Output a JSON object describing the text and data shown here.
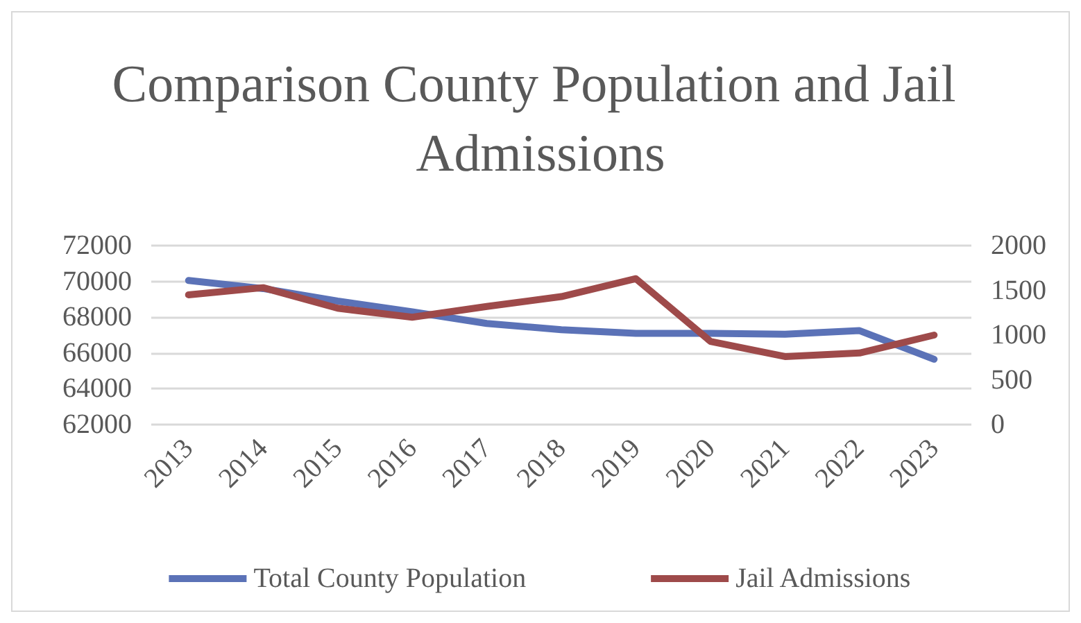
{
  "chart_data": {
    "type": "line",
    "title": "Comparison County Population and Jail Admissions",
    "categories": [
      "2013",
      "2014",
      "2015",
      "2016",
      "2017",
      "2018",
      "2019",
      "2020",
      "2021",
      "2022",
      "2023"
    ],
    "series": [
      {
        "name": "Total County Population",
        "color": "#5b72b7",
        "values": [
          70050,
          69600,
          68900,
          68300,
          67650,
          67300,
          67100,
          67100,
          67050,
          67250,
          65650
        ]
      },
      {
        "name": "Jail Admissions",
        "color": "#9e4a4a",
        "axis": "y2",
        "values": [
          1450,
          1530,
          1300,
          1200,
          1320,
          1430,
          1630,
          930,
          760,
          800,
          1000
        ]
      }
    ],
    "ylim": [
      62000,
      72000
    ],
    "yticks": [
      62000,
      64000,
      66000,
      68000,
      70000,
      72000
    ],
    "y2lim": [
      0,
      2000
    ],
    "y2ticks": [
      0,
      500,
      1000,
      1500,
      2000
    ],
    "grid": "y",
    "legend": "bottom",
    "marker": "none",
    "line_style": "solid"
  }
}
